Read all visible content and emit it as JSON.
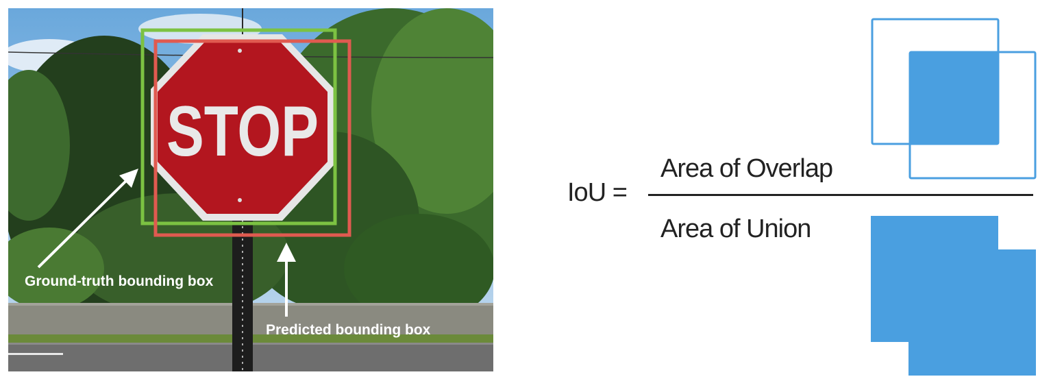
{
  "photo": {
    "sign_text": "STOP",
    "labels": {
      "ground_truth": "Ground-truth bounding box",
      "predicted": "Predicted bounding box"
    },
    "colors": {
      "ground_truth_box": "#7cc242",
      "predicted_box": "#e05a50",
      "sign_red": "#b3161f",
      "arrow": "#ffffff"
    }
  },
  "formula": {
    "lhs": "IoU =",
    "numerator": "Area of Overlap",
    "denominator": "Area of Union",
    "shape_color": "#4a9fe0"
  }
}
